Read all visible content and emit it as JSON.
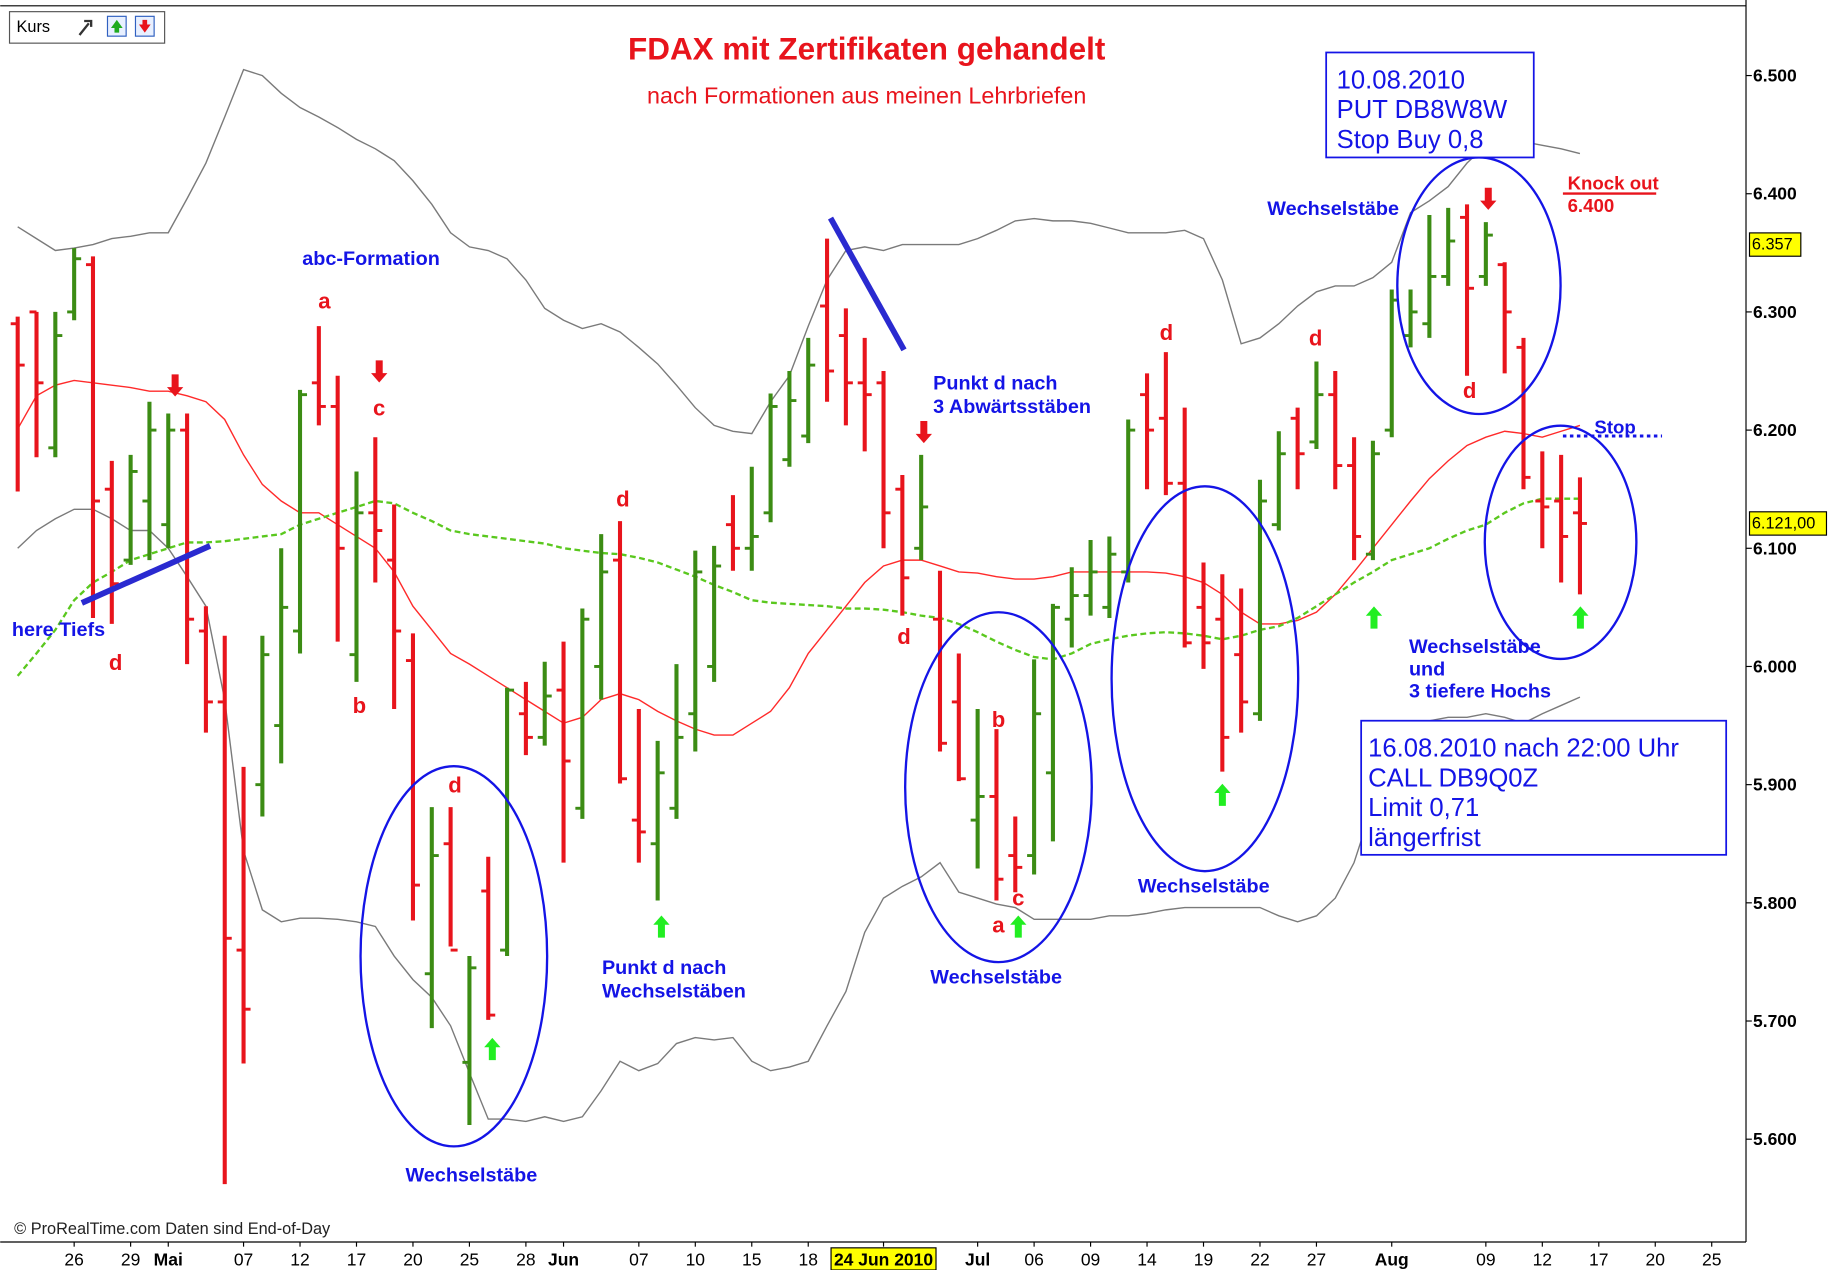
{
  "chart_data": {
    "type": "ohlc",
    "title": "FDAX mit Zertifikaten gehandelt",
    "subtitle": "nach Formationen aus meinen Lehrbriefen",
    "price_label": "Kurs",
    "footer": "© ProRealTime.com  Daten sind End-of-Day",
    "up_color": "#3c8c14",
    "down_color": "#e8141c",
    "categories": [
      null,
      null,
      null,
      "26",
      null,
      null,
      "29",
      null,
      "Mai",
      null,
      null,
      null,
      "07",
      null,
      null,
      "12",
      null,
      null,
      "17",
      null,
      null,
      "20",
      null,
      null,
      "25",
      null,
      null,
      "28",
      null,
      "Jun",
      null,
      null,
      null,
      "07",
      null,
      null,
      "10",
      null,
      null,
      "15",
      null,
      null,
      "18",
      null,
      null,
      null,
      "24 Jun 2010",
      null,
      null,
      null,
      null,
      "Jul",
      null,
      null,
      "06",
      null,
      null,
      "09",
      null,
      null,
      "14",
      null,
      null,
      "19",
      null,
      null,
      "22",
      null,
      null,
      "27",
      null,
      null,
      null,
      "Aug",
      null,
      null,
      null,
      null,
      "09",
      null,
      null,
      "12",
      null,
      null,
      "17",
      null,
      null,
      "20",
      null,
      null,
      "25"
    ],
    "ohlc": {
      "open": [
        6290,
        6300,
        6185,
        6300,
        6340,
        6150,
        6090,
        6140,
        6120,
        6200,
        6030,
        5970,
        5760,
        5900,
        5950,
        6030,
        6240,
        6220,
        6010,
        6130,
        6090,
        6005,
        5740,
        5850,
        5665,
        5810,
        5760,
        5960,
        5940,
        5980,
        5880,
        6000,
        6090,
        5870,
        5850,
        5880,
        5960,
        6000,
        6120,
        6100,
        6130,
        6175,
        6195,
        6305,
        6280,
        6240,
        6240,
        6150,
        6100,
        6040,
        5970,
        5870,
        5890,
        5840,
        5840,
        5910,
        6040,
        6060,
        6050,
        6080,
        6230,
        6210,
        6155,
        6050,
        6040,
        6010,
        5960,
        6120,
        6210,
        6190,
        6230,
        6170,
        6095,
        6200,
        6280,
        6290,
        6330,
        6380,
        6330,
        6340,
        6270,
        6140,
        6140,
        6130,
        null,
        null,
        null,
        null,
        null,
        null,
        null
      ],
      "high": [
        6296,
        6300,
        6300,
        6354,
        6347,
        6174,
        6179,
        6224,
        6214,
        6214,
        6051,
        6026,
        5915,
        6026,
        6100,
        6234,
        6288,
        6246,
        6165,
        6194,
        6137,
        6028,
        5881,
        5881,
        5755,
        5839,
        5982,
        5987,
        6004,
        6021,
        6049,
        6112,
        6123,
        5964,
        5937,
        6002,
        6098,
        6102,
        6145,
        6169,
        6231,
        6250,
        6278,
        6362,
        6303,
        6278,
        6250,
        6162,
        6179,
        6081,
        6011,
        5964,
        5947,
        5873,
        6006,
        6053,
        6084,
        6107,
        6110,
        6209,
        6248,
        6266,
        6219,
        6088,
        6078,
        6066,
        6158,
        6199,
        6219,
        6258,
        6250,
        6194,
        6191,
        6319,
        6319,
        6382,
        6388,
        6391,
        6376,
        6342,
        6278,
        6182,
        6179,
        6160,
        null,
        null,
        null,
        null,
        null,
        null,
        null
      ],
      "low": [
        6148,
        6177,
        6177,
        6293,
        6041,
        6036,
        6086,
        6090,
        6100,
        6002,
        5944,
        5562,
        5664,
        5873,
        5918,
        6011,
        6204,
        6021,
        5987,
        6071,
        5964,
        5785,
        5694,
        5763,
        5612,
        5701,
        5755,
        5925,
        5933,
        5834,
        5871,
        5972,
        5901,
        5834,
        5802,
        5871,
        5928,
        5987,
        6081,
        6081,
        6122,
        6169,
        6189,
        6224,
        6204,
        6182,
        6100,
        6043,
        6090,
        5928,
        5903,
        5829,
        5802,
        5809,
        5824,
        5852,
        6016,
        6043,
        6041,
        6071,
        6150,
        6145,
        6016,
        5998,
        5911,
        5944,
        5954,
        6115,
        6150,
        6184,
        6150,
        6090,
        6090,
        6194,
        6270,
        6278,
        6322,
        6246,
        6322,
        6248,
        6150,
        6100,
        6071,
        6061,
        null,
        null,
        null,
        null,
        null,
        null,
        null
      ],
      "close": [
        6255,
        6240,
        6280,
        6345,
        6140,
        6070,
        6165,
        6200,
        6200,
        6040,
        5970,
        5770,
        5710,
        6010,
        6050,
        6230,
        6220,
        6100,
        6130,
        6115,
        6030,
        5815,
        5840,
        5760,
        5745,
        5705,
        5980,
        5940,
        5975,
        5920,
        6040,
        6080,
        5905,
        5860,
        5910,
        5940,
        6080,
        6085,
        6100,
        6110,
        6220,
        6225,
        6255,
        6250,
        6240,
        6230,
        6130,
        6075,
        6135,
        5935,
        5905,
        5890,
        5820,
        5830,
        5960,
        6050,
        6060,
        6080,
        6095,
        6200,
        6200,
        6155,
        6020,
        6020,
        5940,
        5970,
        6140,
        6180,
        6180,
        6230,
        6170,
        6110,
        6180,
        6310,
        6300,
        6330,
        6360,
        6320,
        6365,
        6300,
        6160,
        6135,
        6110,
        6121,
        null,
        null,
        null,
        null,
        null,
        null,
        null
      ]
    },
    "series": [
      {
        "color": "#7a7a7a",
        "dash": false,
        "values": [
          6372,
          6362,
          6352,
          6354,
          6357,
          6362,
          6364,
          6367,
          6367,
          6396,
          6426,
          6465,
          6505,
          6500,
          6485,
          6473,
          6465,
          6456,
          6446,
          6438,
          6428,
          6411,
          6391,
          6367,
          6355,
          6352,
          6345,
          6327,
          6303,
          6293,
          6286,
          6290,
          6283,
          6270,
          6256,
          6238,
          6219,
          6204,
          6199,
          6197,
          6224,
          6246,
          6288,
          6327,
          6352,
          6355,
          6352,
          6357,
          6357,
          6357,
          6357,
          6362,
          6369,
          6377,
          6379,
          6377,
          6377,
          6375,
          6371,
          6367,
          6367,
          6367,
          6369,
          6362,
          6327,
          6273,
          6278,
          6290,
          6305,
          6317,
          6322,
          6322,
          6329,
          6342,
          6384,
          6394,
          6406,
          6426,
          6441,
          6446,
          6444,
          6441,
          6438,
          6434,
          null,
          null,
          null,
          null,
          null,
          null,
          null
        ]
      },
      {
        "color": "#7a7a7a",
        "dash": false,
        "values": [
          6100,
          6115,
          6125,
          6133,
          6133,
          6125,
          6115,
          6115,
          6100,
          6076,
          6051,
          5972,
          5844,
          5794,
          5784,
          5787,
          5787,
          5786,
          5784,
          5780,
          5755,
          5735,
          5720,
          5696,
          5656,
          5617,
          5617,
          5615,
          5619,
          5615,
          5619,
          5641,
          5666,
          5658,
          5664,
          5681,
          5686,
          5684,
          5686,
          5666,
          5658,
          5661,
          5666,
          5696,
          5725,
          5775,
          5804,
          5814,
          5822,
          5834,
          5809,
          5804,
          5799,
          5796,
          5786,
          5786,
          5786,
          5786,
          5789,
          5789,
          5791,
          5794,
          5796,
          5796,
          5796,
          5796,
          5796,
          5789,
          5784,
          5789,
          5804,
          5834,
          5883,
          5913,
          5952,
          5954,
          5957,
          5957,
          5960,
          5957,
          5952,
          5960,
          5967,
          5974,
          null,
          null,
          null,
          null,
          null,
          null,
          null
        ]
      },
      {
        "color": "#ff2a2a",
        "dash": false,
        "values": [
          6201,
          6229,
          6238,
          6242,
          6240,
          6238,
          6236,
          6233,
          6233,
          6229,
          6224,
          6209,
          6179,
          6154,
          6140,
          6130,
          6130,
          6120,
          6110,
          6100,
          6080,
          6051,
          6031,
          6011,
          6002,
          5992,
          5982,
          5972,
          5962,
          5952,
          5957,
          5972,
          5977,
          5972,
          5962,
          5954,
          5947,
          5942,
          5942,
          5952,
          5962,
          5982,
          6011,
          6031,
          6051,
          6071,
          6085,
          6090,
          6090,
          6085,
          6080,
          6079,
          6076,
          6074,
          6074,
          6076,
          6080,
          6080,
          6080,
          6080,
          6080,
          6079,
          6076,
          6071,
          6061,
          6046,
          6036,
          6036,
          6039,
          6046,
          6061,
          6080,
          6100,
          6120,
          6140,
          6159,
          6174,
          6187,
          6194,
          6199,
          6197,
          6194,
          6199,
          6204,
          null,
          null,
          null,
          null,
          null,
          null,
          null
        ]
      },
      {
        "color": "#5ac81e",
        "dash": true,
        "values": [
          5992,
          6011,
          6031,
          6056,
          6071,
          6080,
          6090,
          6095,
          6100,
          6105,
          6105,
          6106,
          6108,
          6110,
          6112,
          6120,
          6125,
          6130,
          6135,
          6140,
          6138,
          6130,
          6123,
          6115,
          6112,
          6110,
          6108,
          6106,
          6104,
          6100,
          6098,
          6096,
          6095,
          6092,
          6088,
          6082,
          6076,
          6069,
          6063,
          6056,
          6054,
          6053,
          6052,
          6051,
          6049,
          6049,
          6048,
          6046,
          6043,
          6041,
          6036,
          6029,
          6021,
          6014,
          6008,
          6006,
          6011,
          6019,
          6023,
          6026,
          6028,
          6029,
          6028,
          6026,
          6023,
          6026,
          6031,
          6034,
          6041,
          6051,
          6061,
          6071,
          6080,
          6090,
          6095,
          6100,
          6108,
          6115,
          6120,
          6130,
          6138,
          6142,
          6142,
          6142,
          null,
          null,
          null,
          null,
          null,
          null,
          null
        ]
      }
    ],
    "ylim": [
      5513,
      6559
    ],
    "yticks": [
      {
        "value": 5600,
        "label": "5.600"
      },
      {
        "value": 5700,
        "label": "5.700"
      },
      {
        "value": 5800,
        "label": "5.800"
      },
      {
        "value": 5900,
        "label": "5.900"
      },
      {
        "value": 6000,
        "label": "6.000"
      },
      {
        "value": 6100,
        "label": "6.100"
      },
      {
        "value": 6200,
        "label": "6.200"
      },
      {
        "value": 6300,
        "label": "6.300"
      },
      {
        "value": 6400,
        "label": "6.400"
      },
      {
        "value": 6500,
        "label": "6.500"
      }
    ],
    "price_markers": [
      {
        "value": 6357,
        "label": "6.357"
      },
      {
        "value": 6121,
        "label": "6.121,00"
      }
    ],
    "stop_line": 6195,
    "annotations": [
      "abc-Formation",
      "a",
      "c",
      "b",
      "d",
      "d",
      "d",
      "d",
      "b",
      "c",
      "a",
      "d",
      "d",
      "d",
      "here Tiefs",
      "Wechselstäbe",
      "Wechselstäbe",
      "Wechselstäbe",
      "Wechselstäbe",
      "Punkt d nach",
      "Wechselstäben",
      "Punkt d nach",
      "3 Abwärtsstäben",
      "Wechselstäbe",
      "und",
      "3 tiefere Hochs",
      "Stop",
      "Knock out",
      "6.400"
    ],
    "boxes": [
      [
        "10.08.2010",
        "PUT DB8W8W",
        "Stop Buy 0,8"
      ],
      [
        "16.08.2010 nach 22:00 Uhr",
        "CALL DB9Q0Z",
        "Limit 0,71",
        "längerfrist"
      ]
    ]
  }
}
